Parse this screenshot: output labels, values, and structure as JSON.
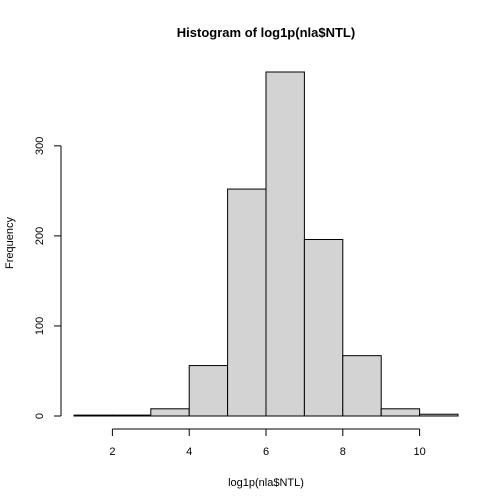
{
  "chart_data": {
    "type": "bar",
    "title": "Histogram of log1p(nla$NTL)",
    "xlabel": "log1p(nla$NTL)",
    "ylabel": "Frequency",
    "bins": [
      {
        "from": 1,
        "to": 2,
        "count": 1
      },
      {
        "from": 2,
        "to": 3,
        "count": 1
      },
      {
        "from": 3,
        "to": 4,
        "count": 8
      },
      {
        "from": 4,
        "to": 5,
        "count": 56
      },
      {
        "from": 5,
        "to": 6,
        "count": 252
      },
      {
        "from": 6,
        "to": 7,
        "count": 382
      },
      {
        "from": 7,
        "to": 8,
        "count": 196
      },
      {
        "from": 8,
        "to": 9,
        "count": 67
      },
      {
        "from": 9,
        "to": 10,
        "count": 8
      },
      {
        "from": 10,
        "to": 11,
        "count": 2
      }
    ],
    "xlim": [
      1,
      11
    ],
    "ylim": [
      0,
      382
    ],
    "xticks": [
      2,
      4,
      6,
      8,
      10
    ],
    "yticks": [
      0,
      100,
      200,
      300
    ],
    "grid": false,
    "bar_fill": "#d3d3d3",
    "bar_stroke": "#000000"
  }
}
